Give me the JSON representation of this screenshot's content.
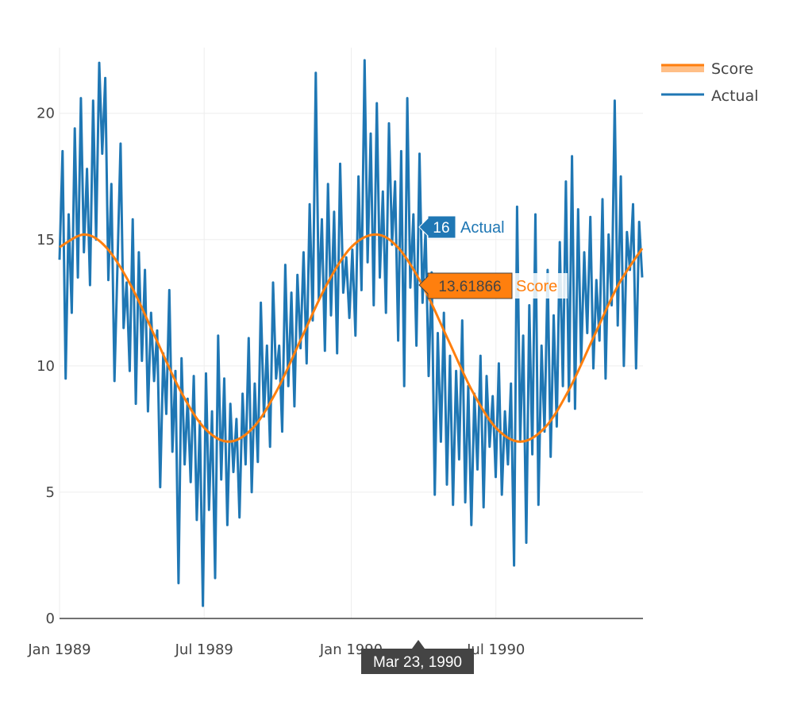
{
  "chart_data": {
    "type": "line",
    "title": "",
    "xlabel": "",
    "ylabel": "",
    "x_range": [
      "1989-01-01",
      "1990-12-31"
    ],
    "ylim": [
      0,
      22.6
    ],
    "grid": true,
    "legend_placement": "top-right",
    "x_ticks": [
      {
        "date": "1989-01-01",
        "label": "Jan 1989"
      },
      {
        "date": "1989-07-01",
        "label": "Jul 1989"
      },
      {
        "date": "1990-01-01",
        "label": "Jan 1990"
      },
      {
        "date": "1990-07-01",
        "label": "Jul 1990"
      }
    ],
    "y_ticks": [
      {
        "value": 0,
        "label": "0"
      },
      {
        "value": 5,
        "label": "5"
      },
      {
        "value": 10,
        "label": "10"
      },
      {
        "value": 15,
        "label": "15"
      },
      {
        "value": 20,
        "label": "20"
      }
    ],
    "series": [
      {
        "name": "Score",
        "color": "#ff7f0e",
        "x_start": "1989-01-01",
        "step_days": "monthly",
        "x": [
          "1989-01-01",
          "1989-02-01",
          "1989-03-01",
          "1989-04-01",
          "1989-05-01",
          "1989-06-01",
          "1989-07-01",
          "1989-08-01",
          "1989-09-01",
          "1989-10-01",
          "1989-11-01",
          "1989-12-01",
          "1990-01-01",
          "1990-02-01",
          "1990-03-01",
          "1990-04-01",
          "1990-05-01",
          "1990-06-01",
          "1990-07-01",
          "1990-08-01",
          "1990-09-01",
          "1990-10-01",
          "1990-11-01",
          "1990-12-01",
          "1990-12-31"
        ],
        "values": [
          14.7,
          15.2,
          14.67,
          13.14,
          11.12,
          9.03,
          7.55,
          7.0,
          7.58,
          9.09,
          11.19,
          13.2,
          14.7,
          15.2,
          14.67,
          13.14,
          11.12,
          9.03,
          7.55,
          7.0,
          7.58,
          9.09,
          11.19,
          13.2,
          14.65
        ]
      },
      {
        "name": "Actual",
        "color": "#1f77b4",
        "x_start": "1989-01-01",
        "x_end": "1990-12-31",
        "spacing": "even",
        "values": [
          14.2,
          18.5,
          9.5,
          16,
          12.1,
          19.4,
          13.5,
          20.6,
          14.5,
          17.8,
          13.2,
          20.5,
          15,
          22,
          18.4,
          21.4,
          13.4,
          17.2,
          9.4,
          14,
          18.8,
          11.5,
          13.3,
          9.8,
          15.8,
          8.5,
          14.5,
          10.2,
          13.8,
          8.2,
          12.1,
          9.4,
          11.4,
          5.2,
          10.5,
          8.1,
          13,
          6.6,
          9.8,
          1.4,
          10.3,
          6.1,
          8.7,
          5.4,
          9.6,
          3.9,
          7.8,
          0.5,
          9.7,
          4.3,
          8.2,
          1.6,
          11.2,
          5.5,
          9.5,
          3.7,
          8.5,
          5.8,
          7.9,
          4.0,
          8.9,
          6.1,
          11.1,
          5.0,
          9.3,
          6.2,
          12.5,
          8.0,
          10.8,
          6.8,
          13.3,
          9.5,
          10.8,
          7.4,
          14.0,
          9.2,
          12.9,
          8.4,
          13.6,
          10.7,
          14.5,
          10.1,
          16.4,
          11.8,
          21.6,
          12.6,
          15.8,
          10.6,
          17.2,
          12.0,
          16.1,
          10.5,
          18.0,
          12.9,
          14.3,
          11.9,
          14.6,
          11.2,
          17.5,
          13.0,
          22.1,
          14.1,
          19.2,
          12.4,
          20.4,
          13.5,
          16.9,
          12.1,
          19.6,
          14.8,
          17.3,
          11.0,
          18.5,
          9.2,
          20.6,
          13.1,
          16.0,
          10.8,
          18.4,
          12.5,
          15.4,
          9.6,
          13.7,
          4.9,
          11.3,
          7.0,
          12.1,
          5.3,
          10.4,
          4.5,
          9.8,
          6.3,
          11.8,
          4.6,
          9.2,
          3.7,
          8.9,
          5.9,
          10.4,
          4.4,
          9.6,
          6.8,
          8.8,
          5.6,
          10.1,
          4.9,
          8.2,
          6.1,
          9.3,
          2.1,
          16.3,
          7.0,
          11.2,
          3.0,
          12.4,
          6.5,
          16.0,
          4.5,
          10.8,
          7.4,
          13.8,
          6.4,
          12.0,
          7.6,
          14.9,
          9.2,
          17.3,
          8.6,
          18.3,
          8.3,
          16.2,
          10.1,
          14.5,
          11.3,
          15.9,
          9.9,
          13.4,
          11.0,
          16.6,
          9.5,
          15.2,
          12.4,
          20.5,
          11.6,
          17.5,
          10.0,
          15.3,
          13.8,
          16.4,
          9.9,
          15.7,
          13.5
        ]
      }
    ],
    "hover": {
      "date": "1990-03-23",
      "date_label": "Mar 23, 1990",
      "actual_value": "16",
      "actual_name": "Actual",
      "score_value": "13.61866",
      "score_name": "Score"
    }
  }
}
